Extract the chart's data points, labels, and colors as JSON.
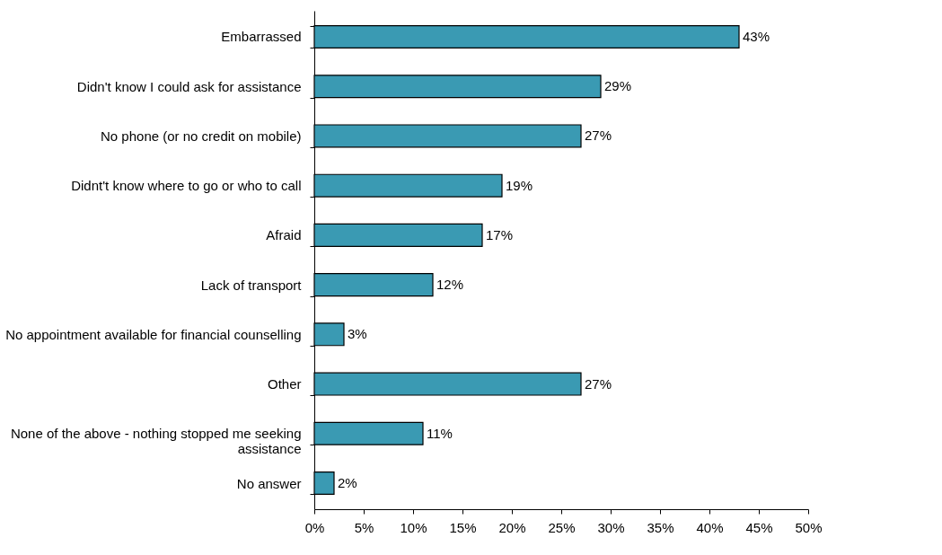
{
  "chart_data": {
    "type": "bar",
    "orientation": "horizontal",
    "categories": [
      "Embarrassed",
      "Didn't know I could ask for assistance",
      "No phone (or no credit on mobile)",
      "Didnt't know where to go or who to call",
      "Afraid",
      "Lack of transport",
      "No appointment available for financial counselling",
      "Other",
      "None of the above - nothing stopped me seeking assistance",
      "No answer"
    ],
    "values": [
      43,
      29,
      27,
      19,
      17,
      12,
      3,
      27,
      11,
      2
    ],
    "value_labels": [
      "43%",
      "29%",
      "27%",
      "19%",
      "17%",
      "12%",
      "3%",
      "27%",
      "11%",
      "2%"
    ],
    "color": "#3a9ab3",
    "xlim": [
      0,
      50
    ],
    "xticks": [
      {
        "value": 0,
        "label": "0%"
      },
      {
        "value": 5,
        "label": "5%"
      },
      {
        "value": 10,
        "label": "10%"
      },
      {
        "value": 15,
        "label": "15%"
      },
      {
        "value": 20,
        "label": "20%"
      },
      {
        "value": 25,
        "label": "25%"
      },
      {
        "value": 30,
        "label": "30%"
      },
      {
        "value": 35,
        "label": "35%"
      },
      {
        "value": 40,
        "label": "40%"
      },
      {
        "value": 45,
        "label": "45%"
      },
      {
        "value": 50,
        "label": "50%"
      }
    ],
    "grid": false
  }
}
